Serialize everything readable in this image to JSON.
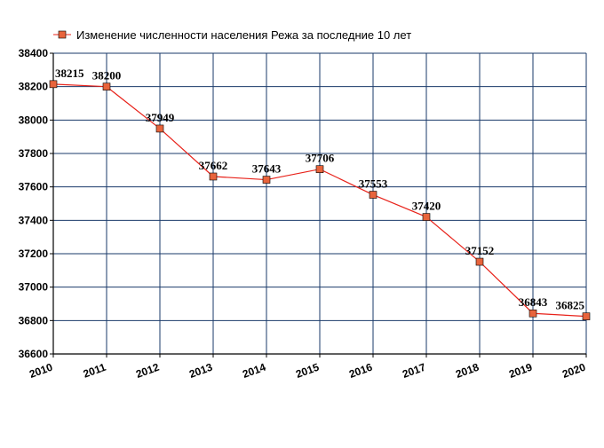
{
  "chart_data": {
    "type": "line",
    "title": "",
    "xlabel": "",
    "ylabel": "",
    "x": [
      2010,
      2011,
      2012,
      2013,
      2014,
      2015,
      2016,
      2017,
      2018,
      2019,
      2020
    ],
    "x_tick_labels": [
      "2010",
      "2011",
      "2012",
      "2013",
      "2014",
      "2015",
      "2016",
      "2017",
      "2018",
      "2019",
      "2020"
    ],
    "ylim": [
      36600,
      38400
    ],
    "y_ticks": [
      36600,
      36800,
      37000,
      37200,
      37400,
      37600,
      37800,
      38000,
      38200,
      38400
    ],
    "y_tick_labels": [
      "36600",
      "36800",
      "37000",
      "37200",
      "37400",
      "37600",
      "37800",
      "38000",
      "38200",
      "38400"
    ],
    "grid": true,
    "legend_position": "top-left",
    "series": [
      {
        "name": "Изменение численности населения Режа за последние 10 лет",
        "color": "#e8221a",
        "marker_color": "#e8643c",
        "values": [
          38215,
          38200,
          37949,
          37662,
          37643,
          37706,
          37553,
          37420,
          37152,
          36843,
          36825
        ],
        "data_labels": [
          "38215",
          "38200",
          "37949",
          "37662",
          "37643",
          "37706",
          "37553",
          "37420",
          "37152",
          "36843",
          "36825"
        ]
      }
    ],
    "colors": {
      "grid": "#1a3a6a",
      "axis": "#000000",
      "background": "#ffffff"
    }
  }
}
